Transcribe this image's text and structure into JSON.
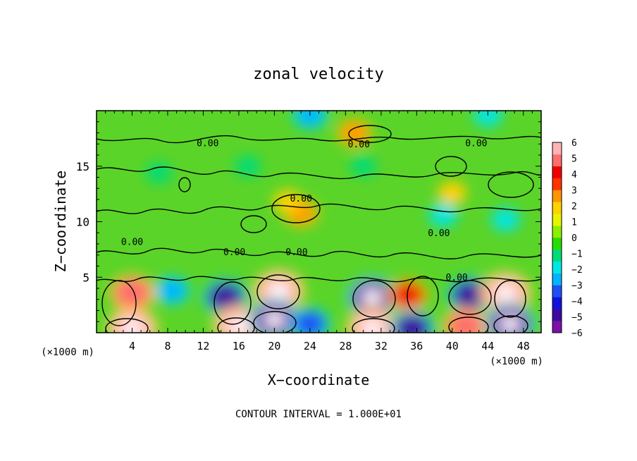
{
  "chart_data": {
    "type": "heatmap",
    "title": "zonal velocity",
    "xlabel": "X−coordinate",
    "ylabel": "Z−coordinate",
    "x_unit_label": "(×1000 m)",
    "z_unit_label": "(×1000 m)",
    "xlim": [
      0,
      50
    ],
    "ylim": [
      0,
      20
    ],
    "x_ticks": [
      "4",
      "8",
      "12",
      "16",
      "20",
      "24",
      "28",
      "32",
      "36",
      "40",
      "44",
      "48"
    ],
    "y_ticks": [
      "5",
      "10",
      "15"
    ],
    "colorbar": {
      "ticks": [
        "6",
        "5",
        "4",
        "3",
        "2",
        "1",
        "0",
        "−1",
        "−2",
        "−3",
        "−4",
        "−5",
        "−6"
      ],
      "range": [
        -6,
        6
      ],
      "colors": [
        "#7d0fa8",
        "#3c0aa0",
        "#1212dc",
        "#1e50f5",
        "#00b4ff",
        "#00e6e6",
        "#00dc78",
        "#28dc00",
        "#8cf000",
        "#e6f500",
        "#ffd200",
        "#ff9600",
        "#ff3200",
        "#f00000",
        "#ff6e6e",
        "#ffb4b4"
      ]
    },
    "contour_labels": [
      {
        "text": "0.00",
        "x": 12.5,
        "z": 16.8
      },
      {
        "text": "0.00",
        "x": 29.5,
        "z": 16.7
      },
      {
        "text": "0.00",
        "x": 42.7,
        "z": 16.8
      },
      {
        "text": "0.00",
        "x": 23.0,
        "z": 11.8
      },
      {
        "text": "0.00",
        "x": 38.5,
        "z": 8.7
      },
      {
        "text": "0.00",
        "x": 4.0,
        "z": 7.9
      },
      {
        "text": "0.00",
        "x": 15.5,
        "z": 7.0
      },
      {
        "text": "0.00",
        "x": 22.5,
        "z": 7.0
      },
      {
        "text": "0.00",
        "x": 40.5,
        "z": 4.7
      }
    ],
    "features": [
      {
        "x": 4,
        "z": 3.6,
        "value": 5
      },
      {
        "x": 4,
        "z": 0.4,
        "value": 6
      },
      {
        "x": 8.5,
        "z": 3.8,
        "value": -3
      },
      {
        "x": 14.5,
        "z": 3.2,
        "value": -5
      },
      {
        "x": 16,
        "z": 0.6,
        "value": 6
      },
      {
        "x": 20.5,
        "z": 3.8,
        "value": 6
      },
      {
        "x": 20,
        "z": 1.2,
        "value": -6
      },
      {
        "x": 24,
        "z": 0.8,
        "value": -4
      },
      {
        "x": 31,
        "z": 3.2,
        "value": -6
      },
      {
        "x": 31,
        "z": 0.4,
        "value": 6
      },
      {
        "x": 35,
        "z": 3.4,
        "value": 4
      },
      {
        "x": 35.5,
        "z": 0.4,
        "value": -5
      },
      {
        "x": 42,
        "z": 3.4,
        "value": -5
      },
      {
        "x": 41.5,
        "z": 0.6,
        "value": 5
      },
      {
        "x": 46,
        "z": 3.6,
        "value": 6
      },
      {
        "x": 46.5,
        "z": 0.8,
        "value": -6
      },
      {
        "x": 23,
        "z": 10.8,
        "value": 3
      },
      {
        "x": 21.5,
        "z": 11.8,
        "value": 2
      },
      {
        "x": 29,
        "z": 18.0,
        "value": 3
      },
      {
        "x": 40,
        "z": 12.6,
        "value": 2
      },
      {
        "x": 39,
        "z": 10.6,
        "value": -2
      },
      {
        "x": 46,
        "z": 10.2,
        "value": -2
      },
      {
        "x": 24,
        "z": 19.6,
        "value": -3
      },
      {
        "x": 44,
        "z": 19.6,
        "value": -2
      },
      {
        "x": 7,
        "z": 14.4,
        "value": -1.5
      },
      {
        "x": 17,
        "z": 15.0,
        "value": -1.5
      },
      {
        "x": 30,
        "z": 15.0,
        "value": -1.5
      }
    ],
    "footer": "CONTOUR INTERVAL = 1.000E+01"
  }
}
